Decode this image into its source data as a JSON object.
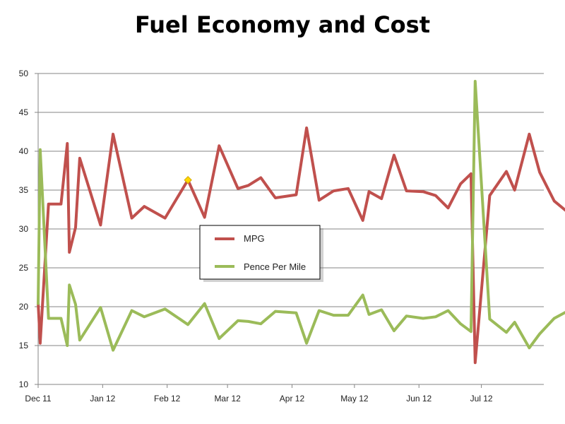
{
  "chart_data": {
    "type": "line",
    "title": "Fuel Economy and Cost",
    "xlabel": "",
    "ylabel": "",
    "ylim": [
      10,
      50
    ],
    "yticks": [
      10,
      15,
      20,
      25,
      30,
      35,
      40,
      45,
      50
    ],
    "xlim": [
      "2011-12-01",
      "2012-07-31"
    ],
    "xticks": [
      {
        "date": "2011-12-01",
        "label": "Dec 11"
      },
      {
        "date": "2012-01-01",
        "label": "Jan 12"
      },
      {
        "date": "2012-02-01",
        "label": "Feb 12"
      },
      {
        "date": "2012-03-01",
        "label": "Mar 12"
      },
      {
        "date": "2012-04-01",
        "label": "Apr 12"
      },
      {
        "date": "2012-05-01",
        "label": "May 12"
      },
      {
        "date": "2012-06-01",
        "label": "Jun 12"
      },
      {
        "date": "2012-07-01",
        "label": "Jul 12"
      }
    ],
    "grid": true,
    "legend_position": "center-left",
    "series": [
      {
        "name": "MPG",
        "color": "#C0504D",
        "points": [
          [
            "2011-12-01",
            20.5
          ],
          [
            "2011-12-02",
            15.3
          ],
          [
            "2011-12-06",
            33.2
          ],
          [
            "2011-12-12",
            33.2
          ],
          [
            "2011-12-15",
            41.0
          ],
          [
            "2011-12-16",
            27.0
          ],
          [
            "2011-12-19",
            30.2
          ],
          [
            "2011-12-21",
            39.1
          ],
          [
            "2011-12-31",
            30.5
          ],
          [
            "2012-01-06",
            42.2
          ],
          [
            "2012-01-15",
            31.4
          ],
          [
            "2012-01-21",
            32.9
          ],
          [
            "2012-01-31",
            31.4
          ],
          [
            "2012-02-11",
            36.3
          ],
          [
            "2012-02-19",
            31.5
          ],
          [
            "2012-02-26",
            40.7
          ],
          [
            "2012-03-06",
            35.2
          ],
          [
            "2012-03-11",
            35.6
          ],
          [
            "2012-03-17",
            36.6
          ],
          [
            "2012-03-24",
            34.0
          ],
          [
            "2012-04-03",
            34.4
          ],
          [
            "2012-04-08",
            43.0
          ],
          [
            "2012-04-14",
            33.7
          ],
          [
            "2012-04-21",
            34.9
          ],
          [
            "2012-04-28",
            35.2
          ],
          [
            "2012-05-05",
            31.1
          ],
          [
            "2012-05-08",
            34.8
          ],
          [
            "2012-05-14",
            33.9
          ],
          [
            "2012-05-20",
            39.5
          ],
          [
            "2012-05-26",
            34.9
          ],
          [
            "2012-06-03",
            34.8
          ],
          [
            "2012-06-09",
            34.3
          ],
          [
            "2012-06-15",
            32.7
          ],
          [
            "2012-06-21",
            35.8
          ],
          [
            "2012-06-26",
            37.1
          ],
          [
            "2012-06-28",
            12.8
          ],
          [
            "2012-07-05",
            34.3
          ],
          [
            "2012-07-13",
            37.4
          ],
          [
            "2012-07-17",
            35.0
          ],
          [
            "2012-07-24",
            42.2
          ],
          [
            "2012-07-29",
            37.3
          ],
          [
            "2012-08-05",
            33.6
          ],
          [
            "2012-08-14",
            31.6
          ]
        ]
      },
      {
        "name": "Pence Per Mile",
        "color": "#9BBB59",
        "points": [
          [
            "2011-12-01",
            20.4
          ],
          [
            "2011-12-02",
            40.2
          ],
          [
            "2011-12-06",
            18.5
          ],
          [
            "2011-12-12",
            18.5
          ],
          [
            "2011-12-15",
            15.0
          ],
          [
            "2011-12-16",
            22.8
          ],
          [
            "2011-12-19",
            20.3
          ],
          [
            "2011-12-21",
            15.7
          ],
          [
            "2011-12-31",
            19.9
          ],
          [
            "2012-01-06",
            14.4
          ],
          [
            "2012-01-15",
            19.5
          ],
          [
            "2012-01-21",
            18.7
          ],
          [
            "2012-01-31",
            19.7
          ],
          [
            "2012-02-11",
            17.7
          ],
          [
            "2012-02-19",
            20.4
          ],
          [
            "2012-02-26",
            15.9
          ],
          [
            "2012-03-06",
            18.2
          ],
          [
            "2012-03-11",
            18.1
          ],
          [
            "2012-03-17",
            17.8
          ],
          [
            "2012-03-24",
            19.4
          ],
          [
            "2012-04-03",
            19.2
          ],
          [
            "2012-04-08",
            15.3
          ],
          [
            "2012-04-14",
            19.5
          ],
          [
            "2012-04-21",
            18.9
          ],
          [
            "2012-04-28",
            18.9
          ],
          [
            "2012-05-05",
            21.5
          ],
          [
            "2012-05-08",
            19.0
          ],
          [
            "2012-05-14",
            19.6
          ],
          [
            "2012-05-20",
            16.9
          ],
          [
            "2012-05-26",
            18.8
          ],
          [
            "2012-06-03",
            18.5
          ],
          [
            "2012-06-09",
            18.7
          ],
          [
            "2012-06-15",
            19.5
          ],
          [
            "2012-06-21",
            17.8
          ],
          [
            "2012-06-26",
            16.8
          ],
          [
            "2012-06-28",
            49.0
          ],
          [
            "2012-07-05",
            18.4
          ],
          [
            "2012-07-13",
            16.7
          ],
          [
            "2012-07-17",
            18.0
          ],
          [
            "2012-07-24",
            14.7
          ],
          [
            "2012-07-29",
            16.5
          ],
          [
            "2012-08-05",
            18.5
          ],
          [
            "2012-08-14",
            19.8
          ]
        ]
      }
    ],
    "highlighted_point": {
      "series": "MPG",
      "x": "2012-02-11",
      "y": 36.3,
      "color": "#FFD700"
    }
  }
}
